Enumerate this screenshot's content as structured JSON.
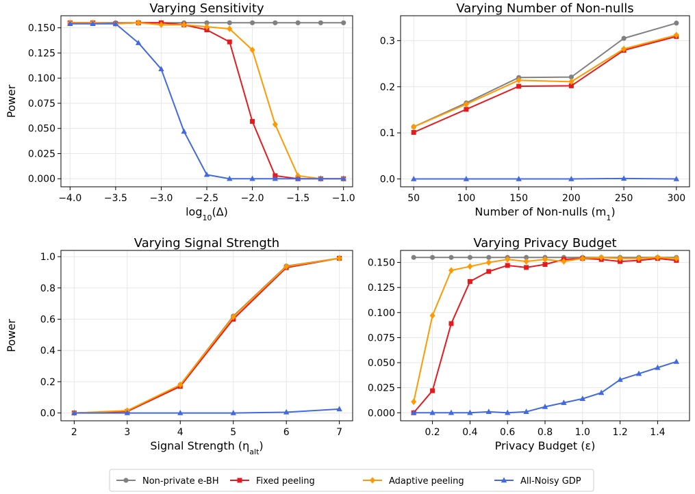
{
  "colors": {
    "Non-private e-BH": "#808080",
    "Fixed peeling": "#e41a1c",
    "Adaptive peeling": "#ff9900",
    "All-Noisy GDP": "#4169e1"
  },
  "markers": {
    "Non-private e-BH": "circle",
    "Fixed peeling": "square",
    "Adaptive peeling": "diamond",
    "All-Noisy GDP": "triangle"
  },
  "legend": {
    "entries": [
      "Non-private e-BH",
      "Fixed peeling",
      "Adaptive peeling",
      "All-Noisy GDP"
    ],
    "placement": "bottom-center"
  },
  "chart_data": [
    {
      "type": "line",
      "title": "Varying Sensitivity",
      "xlabel": "log₁₀(Δ)",
      "ylabel": "Power",
      "xlim": [
        -4.1,
        -0.9
      ],
      "ylim": [
        -0.008,
        0.162
      ],
      "xticks": [
        -4.0,
        -3.5,
        -3.0,
        -2.5,
        -2.0,
        -1.5,
        -1.0
      ],
      "xtick_labels": [
        "−4.0",
        "−3.5",
        "−3.0",
        "−2.5",
        "−2.0",
        "−1.5",
        "−1.0"
      ],
      "yticks": [
        0,
        0.025,
        0.05,
        0.075,
        0.1,
        0.125,
        0.15
      ],
      "ytick_labels": [
        "0.000",
        "0.025",
        "0.050",
        "0.075",
        "0.100",
        "0.125",
        "0.150"
      ],
      "grid": true,
      "x": [
        -4.0,
        -3.75,
        -3.5,
        -3.25,
        -3.0,
        -2.75,
        -2.5,
        -2.25,
        -2.0,
        -1.75,
        -1.5,
        -1.25,
        -1.0
      ],
      "series": [
        {
          "name": "Non-private e-BH",
          "values": [
            0.155,
            0.155,
            0.155,
            0.155,
            0.155,
            0.155,
            0.155,
            0.155,
            0.155,
            0.155,
            0.155,
            0.155,
            0.155
          ]
        },
        {
          "name": "Fixed peeling",
          "values": [
            0.155,
            0.155,
            0.154,
            0.155,
            0.155,
            0.153,
            0.148,
            0.136,
            0.057,
            0.003,
            0.0,
            0.0,
            0.0
          ]
        },
        {
          "name": "Adaptive peeling",
          "values": [
            0.155,
            0.155,
            0.154,
            0.155,
            0.153,
            0.153,
            0.151,
            0.149,
            0.128,
            0.054,
            0.003,
            0.0,
            0.0
          ]
        },
        {
          "name": "All-Noisy GDP",
          "values": [
            0.154,
            0.154,
            0.154,
            0.135,
            0.109,
            0.047,
            0.004,
            0.0,
            0.0,
            0.0,
            0.0,
            0.0,
            0.0
          ]
        }
      ]
    },
    {
      "type": "line",
      "title": "Varying Number of Non-nulls",
      "xlabel": "Number of Non-nulls (m₁)",
      "ylabel": "",
      "xlim": [
        37.5,
        312.5
      ],
      "ylim": [
        -0.017,
        0.354
      ],
      "xticks": [
        50,
        100,
        150,
        200,
        250,
        300
      ],
      "xtick_labels": [
        "50",
        "100",
        "150",
        "200",
        "250",
        "300"
      ],
      "yticks": [
        0,
        0.1,
        0.2,
        0.3
      ],
      "ytick_labels": [
        "0.0",
        "0.1",
        "0.2",
        "0.3"
      ],
      "grid": true,
      "x": [
        50,
        100,
        150,
        200,
        250,
        300
      ],
      "series": [
        {
          "name": "Non-private e-BH",
          "values": [
            0.113,
            0.165,
            0.22,
            0.221,
            0.305,
            0.338
          ]
        },
        {
          "name": "Fixed peeling",
          "values": [
            0.101,
            0.151,
            0.201,
            0.202,
            0.279,
            0.309
          ]
        },
        {
          "name": "Adaptive peeling",
          "values": [
            0.113,
            0.162,
            0.214,
            0.211,
            0.282,
            0.312
          ]
        },
        {
          "name": "All-Noisy GDP",
          "values": [
            0.0,
            0.0,
            0.0,
            0.0,
            0.001,
            0.0
          ]
        }
      ]
    },
    {
      "type": "line",
      "title": "Varying Signal Strength",
      "xlabel": "Signal Strength (ηalt)",
      "ylabel": "Power",
      "xlim": [
        1.75,
        7.25
      ],
      "ylim": [
        -0.05,
        1.04
      ],
      "xticks": [
        2,
        3,
        4,
        5,
        6,
        7
      ],
      "xtick_labels": [
        "2",
        "3",
        "4",
        "5",
        "6",
        "7"
      ],
      "yticks": [
        0,
        0.2,
        0.4,
        0.6,
        0.8,
        1.0
      ],
      "ytick_labels": [
        "0.0",
        "0.2",
        "0.4",
        "0.6",
        "0.8",
        "1.0"
      ],
      "grid": true,
      "x": [
        2,
        3,
        4,
        5,
        6,
        7
      ],
      "series": [
        {
          "name": "Non-private e-BH",
          "values": [
            0.0,
            0.01,
            0.18,
            0.62,
            0.94,
            0.99
          ]
        },
        {
          "name": "Fixed peeling",
          "values": [
            0.0,
            0.01,
            0.17,
            0.6,
            0.93,
            0.99
          ]
        },
        {
          "name": "Adaptive peeling",
          "values": [
            0.0,
            0.015,
            0.18,
            0.615,
            0.937,
            0.99
          ]
        },
        {
          "name": "All-Noisy GDP",
          "values": [
            0.0,
            0.0,
            0.0,
            0.0,
            0.005,
            0.025
          ]
        }
      ]
    },
    {
      "type": "line",
      "title": "Varying Privacy Budget",
      "xlabel": "Privacy Budget (ε)",
      "ylabel": "",
      "xlim": [
        0.03,
        1.57
      ],
      "ylim": [
        -0.008,
        0.162
      ],
      "xticks": [
        0.2,
        0.4,
        0.6,
        0.8,
        1.0,
        1.2,
        1.4
      ],
      "xtick_labels": [
        "0.2",
        "0.4",
        "0.6",
        "0.8",
        "1.0",
        "1.2",
        "1.4"
      ],
      "yticks": [
        0,
        0.025,
        0.05,
        0.075,
        0.1,
        0.125,
        0.15
      ],
      "ytick_labels": [
        "0.000",
        "0.025",
        "0.050",
        "0.075",
        "0.100",
        "0.125",
        "0.150"
      ],
      "grid": true,
      "x": [
        0.1,
        0.2,
        0.3,
        0.4,
        0.5,
        0.6,
        0.7,
        0.8,
        0.9,
        1.0,
        1.1,
        1.2,
        1.3,
        1.4,
        1.5
      ],
      "series": [
        {
          "name": "Non-private e-BH",
          "values": [
            0.155,
            0.155,
            0.155,
            0.155,
            0.155,
            0.155,
            0.155,
            0.155,
            0.155,
            0.155,
            0.155,
            0.155,
            0.155,
            0.155,
            0.155
          ]
        },
        {
          "name": "Fixed peeling",
          "values": [
            0.0,
            0.022,
            0.089,
            0.131,
            0.141,
            0.147,
            0.145,
            0.148,
            0.153,
            0.154,
            0.153,
            0.151,
            0.152,
            0.154,
            0.152
          ]
        },
        {
          "name": "Adaptive peeling",
          "values": [
            0.011,
            0.097,
            0.142,
            0.146,
            0.15,
            0.153,
            0.151,
            0.153,
            0.151,
            0.154,
            0.155,
            0.154,
            0.154,
            0.155,
            0.154
          ]
        },
        {
          "name": "All-Noisy GDP",
          "values": [
            0.0,
            0.0,
            0.0,
            0.0,
            0.001,
            0.0,
            0.001,
            0.006,
            0.01,
            0.014,
            0.02,
            0.033,
            0.039,
            0.045,
            0.051
          ]
        }
      ]
    }
  ]
}
